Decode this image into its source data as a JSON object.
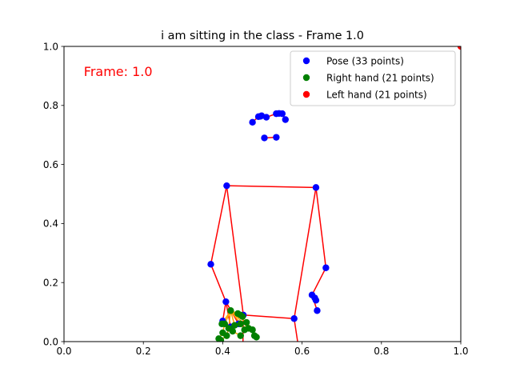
{
  "chart_data": {
    "type": "scatter",
    "title": "i am sitting in the class - Frame 1.0",
    "annotation": "Frame: 1.0",
    "annotation_color": "#ff0000",
    "xlim": [
      0,
      1
    ],
    "ylim": [
      0,
      1
    ],
    "xticks": [
      "0.0",
      "0.2",
      "0.4",
      "0.6",
      "0.8",
      "1.0"
    ],
    "yticks": [
      "0.0",
      "0.2",
      "0.4",
      "0.6",
      "0.8",
      "1.0"
    ],
    "legend_position": "top-right",
    "grid": false,
    "line_color": "#ff0000",
    "hand_line_color": "#ffa500",
    "series": [
      {
        "name": "Pose (33 points)",
        "color": "#0000ff",
        "points": [
          [
            0.51,
            0.76
          ],
          [
            0.498,
            0.765
          ],
          [
            0.495,
            0.763
          ],
          [
            0.49,
            0.762
          ],
          [
            0.535,
            0.772
          ],
          [
            0.542,
            0.773
          ],
          [
            0.55,
            0.772
          ],
          [
            0.475,
            0.743
          ],
          [
            0.558,
            0.752
          ],
          [
            0.505,
            0.69
          ],
          [
            0.535,
            0.692
          ],
          [
            0.41,
            0.528
          ],
          [
            0.635,
            0.522
          ],
          [
            0.37,
            0.262
          ],
          [
            0.66,
            0.25
          ],
          [
            0.408,
            0.135
          ],
          [
            0.625,
            0.158
          ],
          [
            0.632,
            0.148
          ],
          [
            0.638,
            0.105
          ],
          [
            0.4,
            0.07
          ],
          [
            0.635,
            0.14
          ],
          [
            0.42,
            0.05
          ],
          [
            0.44,
            0.06
          ],
          [
            0.452,
            0.09
          ],
          [
            0.58,
            0.078
          ]
        ],
        "connections": [
          [
            0,
            1
          ],
          [
            1,
            2
          ],
          [
            2,
            3
          ],
          [
            3,
            7
          ],
          [
            0,
            4
          ],
          [
            4,
            5
          ],
          [
            5,
            6
          ],
          [
            6,
            8
          ],
          [
            9,
            10
          ],
          [
            11,
            12
          ],
          [
            11,
            13
          ],
          [
            13,
            15
          ],
          [
            12,
            14
          ],
          [
            14,
            16
          ],
          [
            16,
            18
          ],
          [
            16,
            20
          ],
          [
            17,
            20
          ],
          [
            15,
            19
          ],
          [
            15,
            21
          ],
          [
            19,
            21
          ],
          [
            15,
            22
          ],
          [
            11,
            23
          ],
          [
            12,
            24
          ],
          [
            23,
            24
          ]
        ],
        "offscreen_segments": [
          [
            [
              0.452,
              0.09
            ],
            [
              0.45,
              -0.1
            ]
          ],
          [
            [
              0.58,
              0.078
            ],
            [
              0.6,
              -0.1
            ]
          ]
        ]
      },
      {
        "name": "Right hand (21 points)",
        "color": "#008000",
        "points": [
          [
            0.42,
            0.105
          ],
          [
            0.438,
            0.095
          ],
          [
            0.45,
            0.085
          ],
          [
            0.445,
            0.09
          ],
          [
            0.4,
            0.03
          ],
          [
            0.39,
            0.01
          ],
          [
            0.41,
            0.02
          ],
          [
            0.395,
            0.005
          ],
          [
            0.405,
            0.06
          ],
          [
            0.415,
            0.045
          ],
          [
            0.43,
            0.055
          ],
          [
            0.425,
            0.035
          ],
          [
            0.445,
            0.06
          ],
          [
            0.455,
            0.04
          ],
          [
            0.46,
            0.065
          ],
          [
            0.465,
            0.045
          ],
          [
            0.475,
            0.04
          ],
          [
            0.48,
            0.02
          ],
          [
            0.485,
            0.015
          ],
          [
            0.445,
            0.02
          ],
          [
            0.398,
            0.06
          ]
        ],
        "connections": [
          [
            0,
            1
          ],
          [
            1,
            2
          ],
          [
            2,
            3
          ],
          [
            0,
            8
          ],
          [
            8,
            4
          ],
          [
            4,
            5
          ],
          [
            0,
            9
          ],
          [
            9,
            6
          ],
          [
            6,
            7
          ],
          [
            0,
            10
          ],
          [
            10,
            11
          ],
          [
            11,
            19
          ],
          [
            0,
            12
          ],
          [
            12,
            13
          ],
          [
            0,
            14
          ],
          [
            14,
            16
          ],
          [
            16,
            17
          ],
          [
            17,
            18
          ],
          [
            0,
            15
          ],
          [
            0,
            20
          ]
        ]
      },
      {
        "name": "Left hand (21 points)",
        "color": "#ff0000",
        "points": [
          [
            1.0,
            1.0
          ]
        ],
        "connections": []
      }
    ]
  }
}
